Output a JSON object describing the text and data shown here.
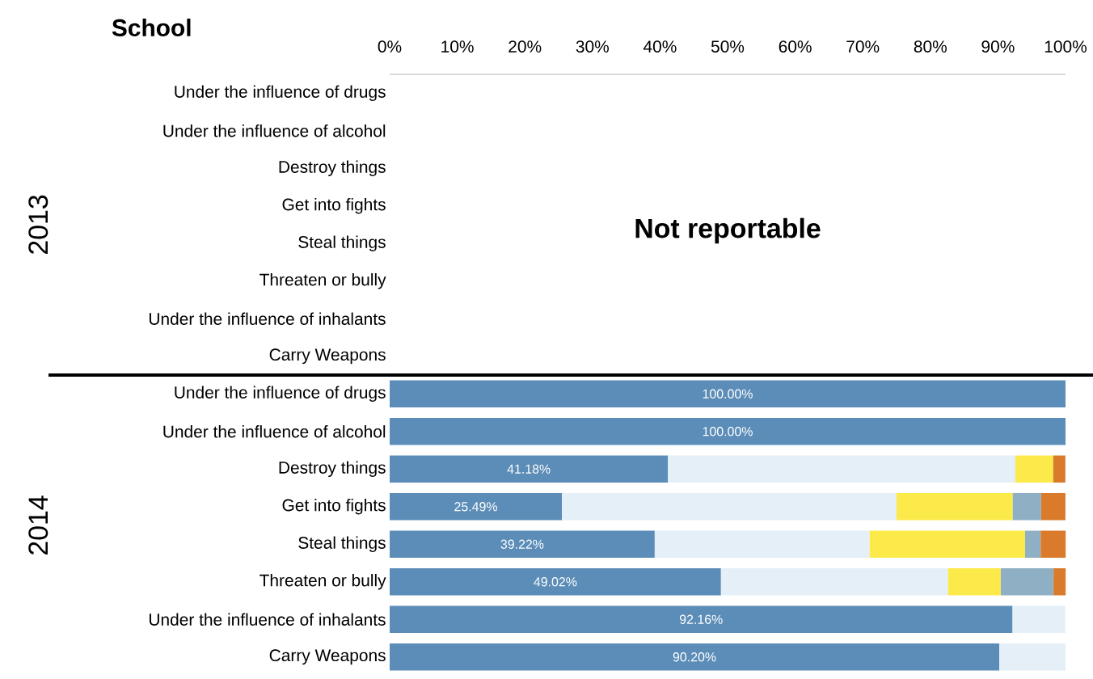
{
  "chart_data": [
    {
      "type": "bar",
      "orientation": "horizontal",
      "title": "School",
      "ylabel": "2013",
      "categories": [
        "Under the influence of drugs",
        "Under the influence of alcohol",
        "Destroy things",
        "Get into fights",
        "Steal things",
        "Threaten or bully",
        "Under the influence of inhalants",
        "Carry Weapons"
      ],
      "values": [
        null,
        null,
        null,
        null,
        null,
        null,
        null,
        null
      ],
      "xlim": [
        0,
        100
      ],
      "xticks": [
        {
          "value": 0,
          "label": "0%"
        },
        {
          "value": 10,
          "label": "10%"
        },
        {
          "value": 20,
          "label": "20%"
        },
        {
          "value": 30,
          "label": "30%"
        },
        {
          "value": 40,
          "label": "40%"
        },
        {
          "value": 50,
          "label": "50%"
        },
        {
          "value": 60,
          "label": "60%"
        },
        {
          "value": 70,
          "label": "70%"
        },
        {
          "value": 80,
          "label": "80%"
        },
        {
          "value": 90,
          "label": "90%"
        },
        {
          "value": 100,
          "label": "100%"
        }
      ],
      "annotations": [
        "Not reportable"
      ]
    },
    {
      "type": "bar",
      "orientation": "horizontal",
      "stacked": true,
      "ylabel": "2014",
      "tick_labels": "y",
      "categories": [
        "Under the influence of drugs",
        "Under the influence of alcohol",
        "Destroy things",
        "Get into fights",
        "Steal things",
        "Threaten or bully",
        "Under the influence of inhalants",
        "Carry Weapons"
      ],
      "xlim": [
        0,
        100
      ],
      "series": [
        {
          "color": "#5b8db8",
          "values": [
            100.0,
            100.0,
            41.18,
            25.49,
            39.22,
            49.02,
            92.16,
            90.2
          ],
          "value_labels": [
            "100.00%",
            "100.00%",
            "41.18%",
            "25.49%",
            "39.22%",
            "49.02%",
            "92.16%",
            "90.20%"
          ]
        },
        {
          "color": "#e4eff7",
          "values": [
            null,
            null,
            51.4,
            49.5,
            31.8,
            33.6,
            7.8,
            9.8
          ]
        },
        {
          "color": "#fcea4a",
          "values": [
            null,
            null,
            5.6,
            17.2,
            23.0,
            7.8,
            null,
            null
          ]
        },
        {
          "color": "#8fb0c4",
          "values": [
            null,
            null,
            null,
            4.2,
            2.3,
            7.8,
            null,
            null
          ]
        },
        {
          "color": "#d97b2b",
          "values": [
            null,
            null,
            1.8,
            3.6,
            3.7,
            1.8,
            null,
            null
          ]
        }
      ]
    }
  ]
}
